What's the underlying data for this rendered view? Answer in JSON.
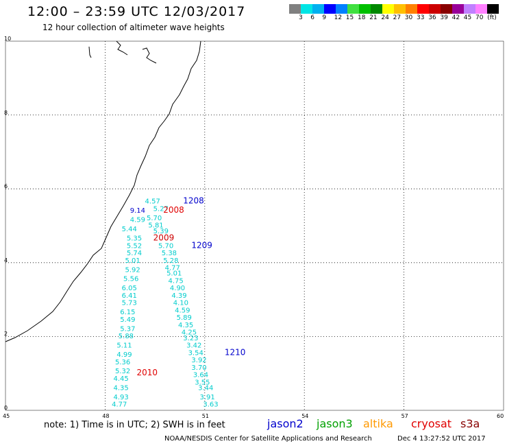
{
  "header": {
    "title": "12:00 – 23:59 UTC 12/03/2017",
    "subtitle": "12 hour collection of altimeter wave heights"
  },
  "color_scale": {
    "colors": [
      "#808080",
      "#00e5e5",
      "#00b0f0",
      "#0000ff",
      "#0080ff",
      "#40e040",
      "#00c000",
      "#008800",
      "#ffff00",
      "#ffc000",
      "#ff8000",
      "#ff0000",
      "#cc0000",
      "#880000",
      "#990099",
      "#c080ff",
      "#ff80ff",
      "#000000"
    ],
    "labels": [
      "3",
      "6",
      "9",
      "12",
      "15",
      "18",
      "21",
      "24",
      "27",
      "30",
      "33",
      "36",
      "39",
      "42",
      "45",
      "70",
      "(ft)"
    ]
  },
  "axes": {
    "x_ticks": [
      "45",
      "48",
      "51",
      "54",
      "57",
      "60"
    ],
    "y_ticks": [
      "0",
      "2",
      "4",
      "6",
      "8",
      "10"
    ]
  },
  "map": {
    "x_range": [
      45,
      60
    ],
    "y_range": [
      0,
      10
    ]
  },
  "observations": [
    {
      "value": "4.57",
      "lon": 49.2,
      "lat": 5.6
    },
    {
      "value": "5.27",
      "lon": 49.45,
      "lat": 5.4
    },
    {
      "value": "9.14",
      "lon": 48.75,
      "lat": 5.35
    },
    {
      "value": "5.70",
      "lon": 49.25,
      "lat": 5.15
    },
    {
      "value": "4.59",
      "lon": 48.75,
      "lat": 5.1
    },
    {
      "value": "5.81",
      "lon": 49.3,
      "lat": 4.95
    },
    {
      "value": "5.44",
      "lon": 48.5,
      "lat": 4.85
    },
    {
      "value": "5.39",
      "lon": 49.45,
      "lat": 4.8
    },
    {
      "value": "5.35",
      "lon": 48.65,
      "lat": 4.6
    },
    {
      "value": "5.70",
      "lon": 49.6,
      "lat": 4.4
    },
    {
      "value": "5.52",
      "lon": 48.65,
      "lat": 4.4
    },
    {
      "value": "5.38",
      "lon": 49.7,
      "lat": 4.2
    },
    {
      "value": "5.74",
      "lon": 48.65,
      "lat": 4.2
    },
    {
      "value": "5.28",
      "lon": 49.75,
      "lat": 4.0
    },
    {
      "value": "5.01",
      "lon": 48.6,
      "lat": 4.0
    },
    {
      "value": "4.77",
      "lon": 49.8,
      "lat": 3.8
    },
    {
      "value": "5.92",
      "lon": 48.6,
      "lat": 3.75
    },
    {
      "value": "5.01",
      "lon": 49.85,
      "lat": 3.65
    },
    {
      "value": "5.56",
      "lon": 48.55,
      "lat": 3.5
    },
    {
      "value": "4.75",
      "lon": 49.9,
      "lat": 3.45
    },
    {
      "value": "6.05",
      "lon": 48.5,
      "lat": 3.25
    },
    {
      "value": "4.90",
      "lon": 49.95,
      "lat": 3.25
    },
    {
      "value": "6.41",
      "lon": 48.5,
      "lat": 3.05
    },
    {
      "value": "4.39",
      "lon": 50.0,
      "lat": 3.05
    },
    {
      "value": "5.73",
      "lon": 48.5,
      "lat": 2.85
    },
    {
      "value": "4.10",
      "lon": 50.05,
      "lat": 2.85
    },
    {
      "value": "4.59",
      "lon": 50.1,
      "lat": 2.65
    },
    {
      "value": "6.15",
      "lon": 48.45,
      "lat": 2.6
    },
    {
      "value": "5.89",
      "lon": 50.15,
      "lat": 2.45
    },
    {
      "value": "5.49",
      "lon": 48.45,
      "lat": 2.4
    },
    {
      "value": "4.35",
      "lon": 50.2,
      "lat": 2.25
    },
    {
      "value": "5.37",
      "lon": 48.45,
      "lat": 2.15
    },
    {
      "value": "4.25",
      "lon": 50.3,
      "lat": 2.05
    },
    {
      "value": "5.88",
      "lon": 48.4,
      "lat": 1.95
    },
    {
      "value": "3.23",
      "lon": 50.35,
      "lat": 1.9
    },
    {
      "value": "5.11",
      "lon": 48.35,
      "lat": 1.7
    },
    {
      "value": "3.42",
      "lon": 50.45,
      "lat": 1.7
    },
    {
      "value": "3.54",
      "lon": 50.5,
      "lat": 1.5
    },
    {
      "value": "4.99",
      "lon": 48.35,
      "lat": 1.45
    },
    {
      "value": "3.92",
      "lon": 50.6,
      "lat": 1.3
    },
    {
      "value": "5.36",
      "lon": 48.3,
      "lat": 1.25
    },
    {
      "value": "3.70",
      "lon": 50.6,
      "lat": 1.1
    },
    {
      "value": "5.32",
      "lon": 48.3,
      "lat": 1.0
    },
    {
      "value": "3.64",
      "lon": 50.65,
      "lat": 0.9
    },
    {
      "value": "4.45",
      "lon": 48.25,
      "lat": 0.8
    },
    {
      "value": "3.55",
      "lon": 50.7,
      "lat": 0.7
    },
    {
      "value": "4.35",
      "lon": 48.25,
      "lat": 0.55
    },
    {
      "value": "3.44",
      "lon": 50.8,
      "lat": 0.55
    },
    {
      "value": "4.93",
      "lon": 48.25,
      "lat": 0.3
    },
    {
      "value": "3.91",
      "lon": 50.85,
      "lat": 0.3
    },
    {
      "value": "4.77",
      "lon": 48.2,
      "lat": 0.1
    },
    {
      "value": "3.63",
      "lon": 50.95,
      "lat": 0.1
    }
  ],
  "pass_labels": [
    {
      "text": "1208",
      "lon": 50.35,
      "lat": 5.6,
      "color": "#0000cc"
    },
    {
      "text": "2008",
      "lon": 49.75,
      "lat": 5.35,
      "color": "#e00000"
    },
    {
      "text": "2009",
      "lon": 49.45,
      "lat": 4.6,
      "color": "#cc0000"
    },
    {
      "text": "1209",
      "lon": 50.6,
      "lat": 4.4,
      "color": "#0000cc"
    },
    {
      "text": "1210",
      "lon": 51.6,
      "lat": 1.5,
      "color": "#0000cc"
    },
    {
      "text": "2010",
      "lon": 48.95,
      "lat": 0.95,
      "color": "#e00000"
    }
  ],
  "footer": {
    "note": "note: 1) Time is in UTC; 2) SWH is in feet",
    "satellites": [
      {
        "name": "jason2",
        "color": "#0000cc"
      },
      {
        "name": "jason3",
        "color": "#00a000"
      },
      {
        "name": "altika",
        "color": "#ff9900"
      },
      {
        "name": "cryosat",
        "color": "#e00000"
      },
      {
        "name": "s3a",
        "color": "#880000"
      }
    ],
    "credit": "NOAA/NESDIS Center for Satellite Applications and Research",
    "timestamp": "Dec  4 13:27:52 UTC 2017"
  }
}
